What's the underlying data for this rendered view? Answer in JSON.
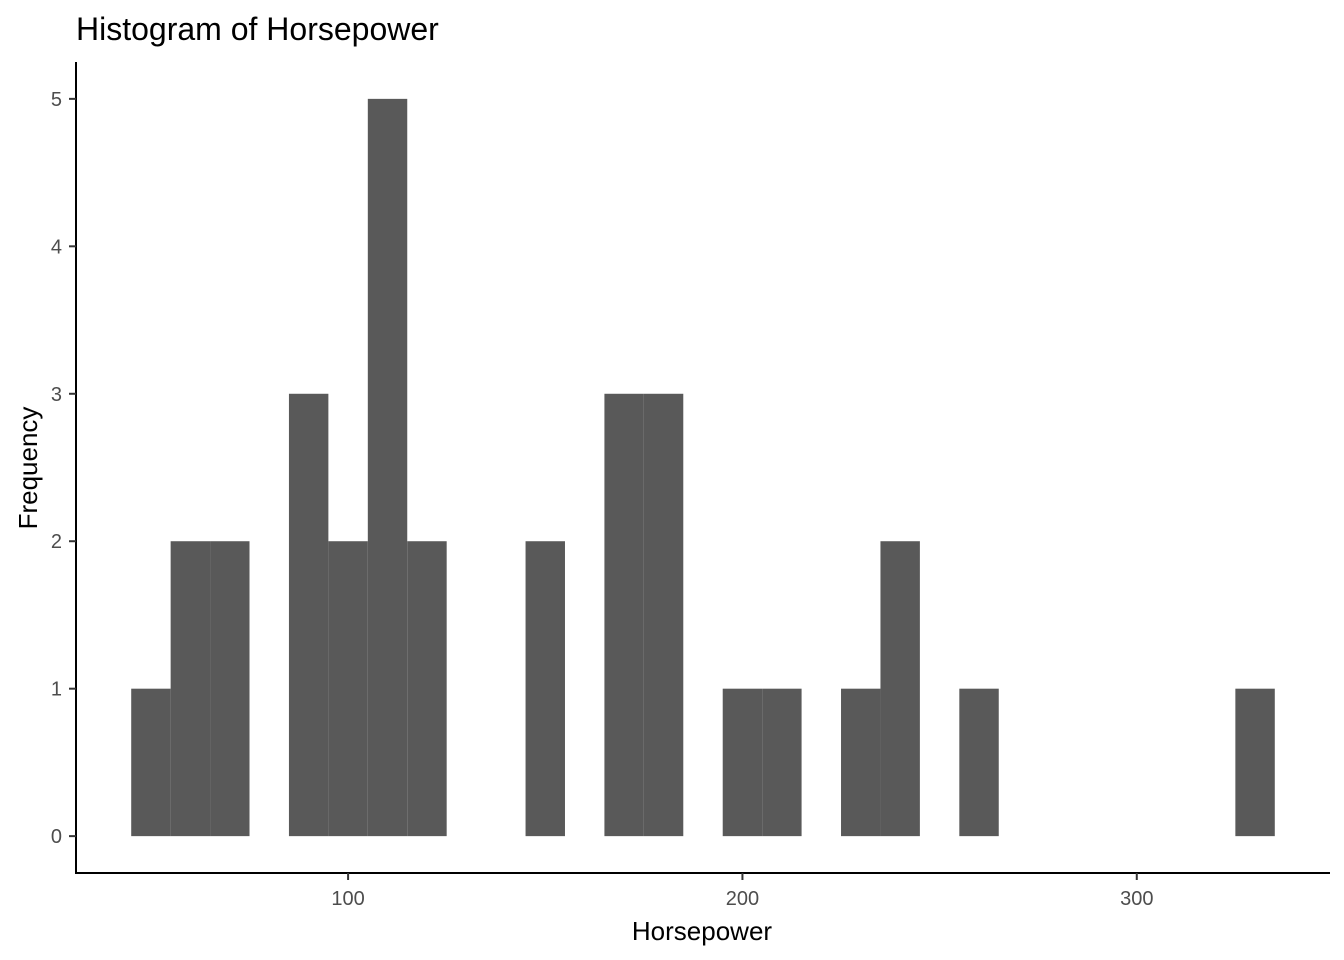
{
  "chart_data": {
    "type": "bar",
    "title": "Histogram of Horsepower",
    "xlabel": "Horsepower",
    "ylabel": "Frequency",
    "bin_width": 10,
    "bins": [
      {
        "x0": 45,
        "x1": 55,
        "count": 1
      },
      {
        "x0": 55,
        "x1": 65,
        "count": 2
      },
      {
        "x0": 65,
        "x1": 75,
        "count": 2
      },
      {
        "x0": 85,
        "x1": 95,
        "count": 3
      },
      {
        "x0": 95,
        "x1": 105,
        "count": 2
      },
      {
        "x0": 105,
        "x1": 115,
        "count": 5
      },
      {
        "x0": 115,
        "x1": 125,
        "count": 2
      },
      {
        "x0": 145,
        "x1": 155,
        "count": 2
      },
      {
        "x0": 165,
        "x1": 175,
        "count": 3
      },
      {
        "x0": 175,
        "x1": 185,
        "count": 3
      },
      {
        "x0": 195,
        "x1": 205,
        "count": 1
      },
      {
        "x0": 205,
        "x1": 215,
        "count": 1
      },
      {
        "x0": 225,
        "x1": 235,
        "count": 1
      },
      {
        "x0": 235,
        "x1": 245,
        "count": 2
      },
      {
        "x0": 255,
        "x1": 265,
        "count": 1
      },
      {
        "x0": 325,
        "x1": 335,
        "count": 1
      }
    ],
    "xlim": [
      31,
      349
    ],
    "ylim": [
      -0.25,
      5.25
    ],
    "x_ticks": [
      100,
      200,
      300
    ],
    "y_ticks": [
      0,
      1,
      2,
      3,
      4,
      5
    ],
    "bar_color": "#595959",
    "grid": false,
    "legend": "none"
  }
}
